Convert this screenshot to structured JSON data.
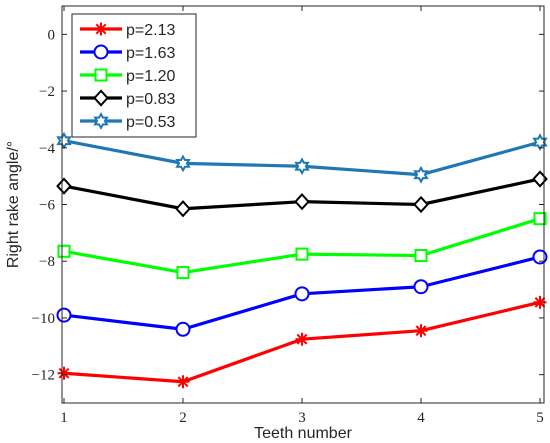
{
  "chart_data": {
    "type": "line",
    "xlabel": "Teeth number",
    "ylabel": "Right rake angle/°",
    "x": [
      1,
      2,
      3,
      4,
      5
    ],
    "xlim": [
      1,
      5
    ],
    "ylim": [
      -13,
      1
    ],
    "xticks": [
      "1",
      "2",
      "3",
      "4",
      "5"
    ],
    "yticks": [
      0,
      -2,
      -4,
      -6,
      -8,
      -10,
      -12
    ],
    "ytick_labels": [
      "0",
      "−2",
      "−4",
      "−6",
      "−8",
      "−10",
      "−12"
    ],
    "grid": false,
    "legend_position": "top-left",
    "series": [
      {
        "name": "p=2.13",
        "color": "#ff0000",
        "marker": "asterisk",
        "values": [
          -11.95,
          -12.25,
          -10.75,
          -10.45,
          -9.45
        ]
      },
      {
        "name": "p=1.63",
        "color": "#0000ff",
        "marker": "circle",
        "values": [
          -9.9,
          -10.4,
          -9.15,
          -8.9,
          -7.85
        ]
      },
      {
        "name": "p=1.20",
        "color": "#00ff00",
        "marker": "square",
        "values": [
          -7.65,
          -8.4,
          -7.75,
          -7.8,
          -6.5
        ]
      },
      {
        "name": "p=0.83",
        "color": "#000000",
        "marker": "diamond",
        "values": [
          -5.35,
          -6.15,
          -5.9,
          -6.0,
          -5.1
        ]
      },
      {
        "name": "p=0.53",
        "color": "#1f77b4",
        "marker": "hexagram",
        "values": [
          -3.75,
          -4.55,
          -4.65,
          -4.95,
          -3.8
        ]
      }
    ]
  }
}
